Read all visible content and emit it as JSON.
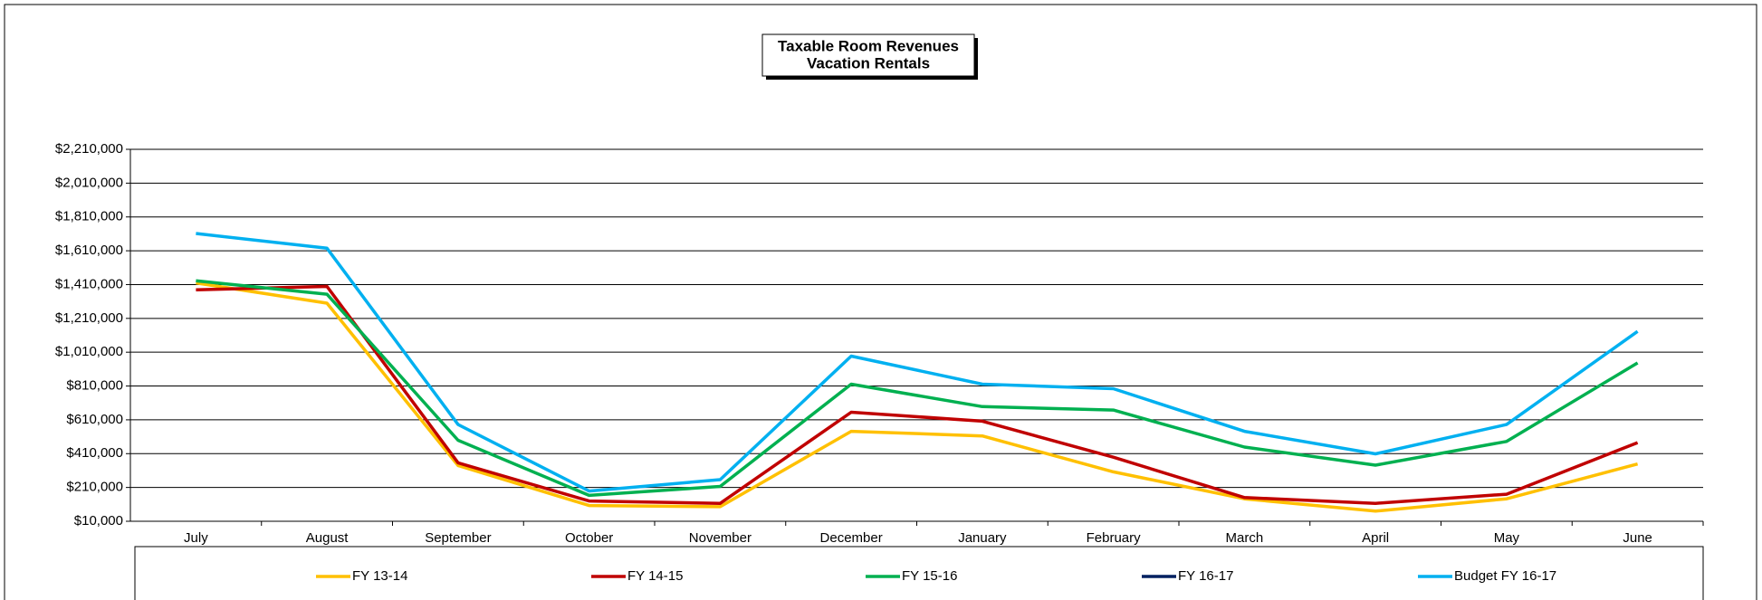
{
  "chart_data": {
    "type": "line",
    "title": "Taxable Room Revenues",
    "subtitle": "Vacation Rentals",
    "categories": [
      "July",
      "August",
      "September",
      "October",
      "November",
      "December",
      "January",
      "February",
      "March",
      "April",
      "May",
      "June"
    ],
    "series": [
      {
        "name": "FY 13-14",
        "color": "#ffc000",
        "values": [
          1420000,
          1300000,
          340000,
          103000,
          96000,
          542000,
          515000,
          302000,
          143000,
          70000,
          143000,
          349000
        ]
      },
      {
        "name": "FY 14-15",
        "color": "#c00000",
        "values": [
          1379000,
          1399000,
          356000,
          130000,
          116000,
          655000,
          602000,
          389000,
          150000,
          116000,
          170000,
          475000
        ]
      },
      {
        "name": "FY 15-16",
        "color": "#00b050",
        "values": [
          1432000,
          1353000,
          489000,
          163000,
          216000,
          821000,
          688000,
          668000,
          449000,
          342000,
          482000,
          947000
        ]
      },
      {
        "name": "FY 16-17",
        "color": "#002060",
        "values": [
          null,
          null,
          null,
          null,
          null,
          null,
          null,
          null,
          null,
          null,
          null,
          null
        ]
      },
      {
        "name": "Budget FY 16-17",
        "color": "#00b0f0",
        "values": [
          1712000,
          1625000,
          582000,
          189000,
          256000,
          987000,
          821000,
          794000,
          542000,
          409000,
          582000,
          1133000
        ]
      }
    ],
    "ylim": [
      10000,
      2210000
    ],
    "yticks": [
      {
        "value": 10000,
        "label": "$10,000"
      },
      {
        "value": 210000,
        "label": "$210,000"
      },
      {
        "value": 410000,
        "label": "$410,000"
      },
      {
        "value": 610000,
        "label": "$610,000"
      },
      {
        "value": 810000,
        "label": "$810,000"
      },
      {
        "value": 1010000,
        "label": "$1,010,000"
      },
      {
        "value": 1210000,
        "label": "$1,210,000"
      },
      {
        "value": 1410000,
        "label": "$1,410,000"
      },
      {
        "value": 1610000,
        "label": "$1,610,000"
      },
      {
        "value": 1810000,
        "label": "$1,810,000"
      },
      {
        "value": 2010000,
        "label": "$2,010,000"
      },
      {
        "value": 2210000,
        "label": "$2,210,000"
      }
    ],
    "grid": true,
    "legend": "bottom"
  }
}
